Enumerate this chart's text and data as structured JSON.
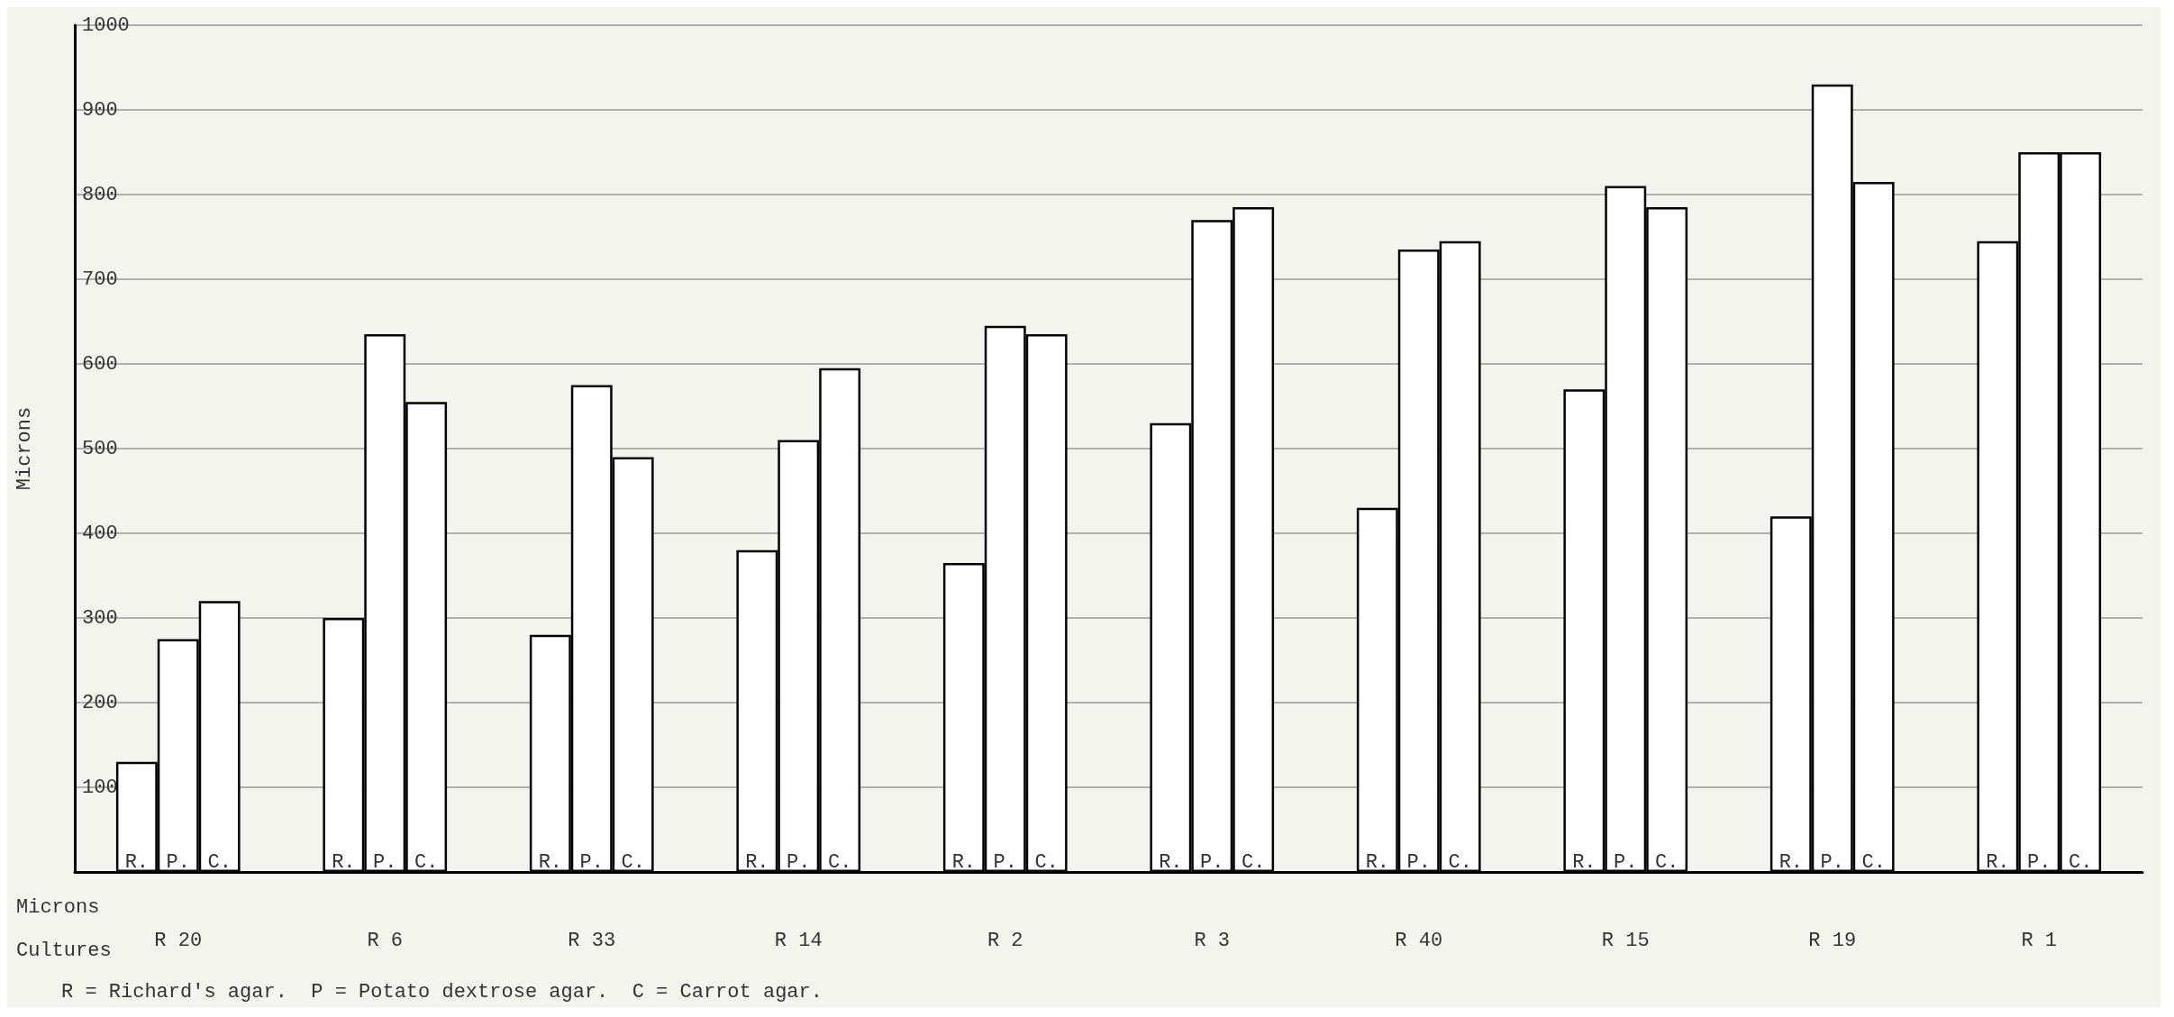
{
  "chart_data": {
    "type": "bar",
    "ylabel": "Microns",
    "categories": [
      "R 20",
      "R 6",
      "R 33",
      "R 14",
      "R 2",
      "R 3",
      "R 40",
      "R 15",
      "R 19",
      "R 1"
    ],
    "series": [
      {
        "name": "R.",
        "color": "#ffffff",
        "values": [
          130,
          300,
          280,
          380,
          365,
          530,
          430,
          570,
          420,
          745
        ]
      },
      {
        "name": "P.",
        "color": "#ffffff",
        "values": [
          275,
          635,
          575,
          510,
          645,
          770,
          735,
          810,
          930,
          850
        ]
      },
      {
        "name": "C.",
        "color": "#ffffff",
        "values": [
          320,
          555,
          490,
          595,
          635,
          785,
          745,
          785,
          815,
          850
        ]
      }
    ],
    "ylim": [
      0,
      1000
    ],
    "yticks": [
      100,
      200,
      300,
      400,
      500,
      600,
      700,
      800,
      900,
      1000
    ],
    "grid": true,
    "legend": false,
    "annotations": [
      "Microns",
      "Cultures",
      "R = Richard's agar.  P = Potato dextrose agar.  C = Carrot agar."
    ]
  }
}
